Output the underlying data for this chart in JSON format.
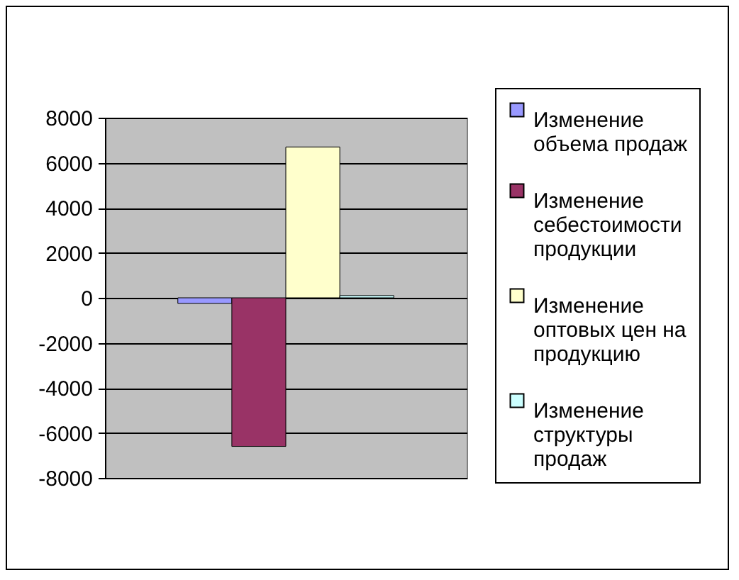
{
  "chart_data": {
    "type": "bar",
    "categories": [
      null
    ],
    "series": [
      {
        "name": "Изменение объема продаж",
        "color": "#9999ff",
        "values": [
          -250
        ]
      },
      {
        "name": "Изменение себестоимости продукции",
        "color": "#993366",
        "values": [
          -6600
        ]
      },
      {
        "name": "Изменение оптовых цен на продукцию",
        "color": "#ffffcc",
        "values": [
          6700
        ]
      },
      {
        "name": "Изменение структуры продаж",
        "color": "#ccffff",
        "values": [
          100
        ]
      }
    ],
    "ylim": [
      -8000,
      8000
    ],
    "yticks": [
      -8000,
      -6000,
      -4000,
      -2000,
      0,
      2000,
      4000,
      6000,
      8000
    ],
    "grid": "y",
    "legend": "right",
    "tick_labels": "y"
  }
}
